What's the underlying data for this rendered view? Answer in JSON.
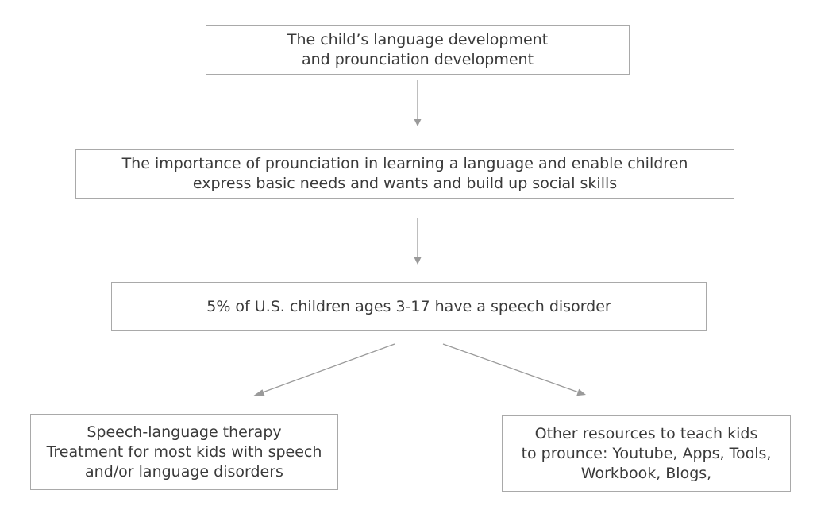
{
  "nodes": {
    "development": {
      "lines": [
        "The child’s language development",
        "and prounciation development"
      ]
    },
    "importance": {
      "lines": [
        "The importance of prounciation in learning a language and enable children",
        "express basic needs and wants and build up social skills"
      ]
    },
    "statistic": {
      "lines": [
        "5% of U.S. children ages 3-17 have a speech disorder"
      ]
    },
    "therapy": {
      "lines": [
        "Speech-language therapy",
        "Treatment for most kids with speech",
        "and/or language disorders"
      ]
    },
    "resources": {
      "lines": [
        "Other resources to teach kids",
        "to prounce: Youtube, Apps, Tools,",
        "Workbook, Blogs,"
      ]
    }
  },
  "edges": [
    {
      "from": "development",
      "to": "importance"
    },
    {
      "from": "importance",
      "to": "statistic"
    },
    {
      "from": "statistic",
      "to": "therapy"
    },
    {
      "from": "statistic",
      "to": "resources"
    }
  ]
}
